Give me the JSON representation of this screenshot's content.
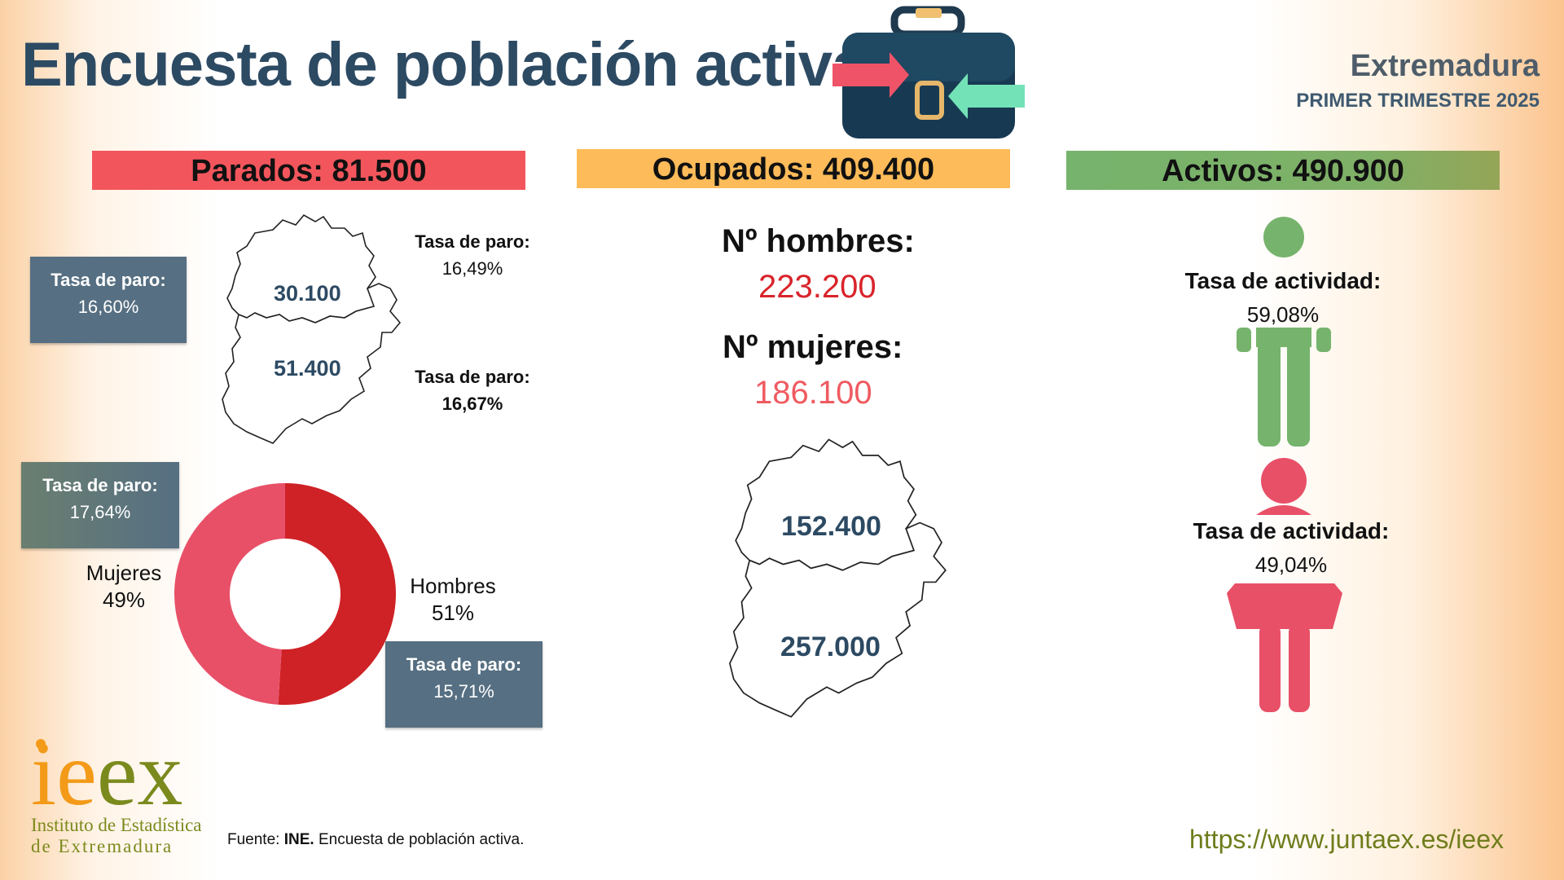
{
  "header": {
    "title": "Encuesta de población activa",
    "region": "Extremadura",
    "period": "PRIMER TRIMESTRE 2025"
  },
  "colors": {
    "title": "#2d4a63",
    "parados_banner": "#f2565c",
    "ocupados_banner": "#fdbb59",
    "activos_banner": "#76b36c",
    "hombres": "#cf2226",
    "mujeres": "#e85068",
    "activos_hombre": "#76b36c",
    "activos_mujer": "#e85068"
  },
  "parados": {
    "banner": "Parados: 81.500",
    "tasa_label": "Tasa de paro:",
    "total_tasa": "16,60%",
    "caceres_value": "30.100",
    "caceres_tasa": "16,49%",
    "badajoz_value": "51.400",
    "badajoz_tasa": "16,67%",
    "mujeres_tasa": "17,64%",
    "hombres_tasa": "15,71%",
    "donut": {
      "mujeres_label": "Mujeres",
      "mujeres_pct": "49%",
      "hombres_label": "Hombres",
      "hombres_pct": "51%",
      "mujeres_value": 49,
      "hombres_value": 51
    }
  },
  "ocupados": {
    "banner": "Ocupados: 409.400",
    "hombres_label": "Nº hombres:",
    "hombres_value": "223.200",
    "mujeres_label": "Nº mujeres:",
    "mujeres_value": "186.100",
    "caceres_value": "152.400",
    "badajoz_value": "257.000"
  },
  "activos": {
    "banner": "Activos: 490.900",
    "tasa_label": "Tasa de actividad:",
    "hombres_tasa": "59,08%",
    "mujeres_tasa": "49,04%"
  },
  "footer": {
    "logo_word": "ieex",
    "logo_line1": "Instituto de Estadística",
    "logo_line2": "de Extremadura",
    "source_prefix": "Fuente: ",
    "source_bold": "INE.",
    "source_rest": " Encuesta de población activa.",
    "url": "https://www.juntaex.es/ieex"
  }
}
